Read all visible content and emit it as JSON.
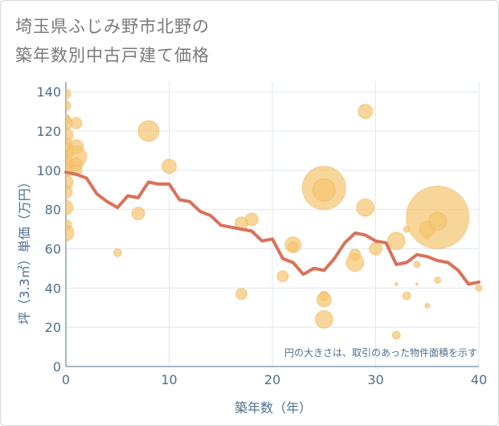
{
  "title_lines": [
    "埼玉県ふじみ野市北野の",
    "築年数別中古戸建て価格"
  ],
  "colors": {
    "line": "#d9725a",
    "bubble": "#f5c36e",
    "grid": "#dfe7f0",
    "axis_text": "#4f6f8f",
    "title": "#7a7a7a"
  },
  "chart_data": {
    "type": "scatter",
    "xlabel": "築年数（年）",
    "ylabel": "坪（3.3㎡）単価（万円）",
    "xlim": [
      0,
      40
    ],
    "ylim": [
      0,
      145
    ],
    "x_ticks": [
      0,
      10,
      20,
      30,
      40
    ],
    "y_ticks": [
      0,
      20,
      40,
      60,
      80,
      100,
      120,
      140
    ],
    "grid": true,
    "note": "円の大きさは、取引のあった物件面積を示す",
    "series": [
      {
        "kind": "bubbles",
        "points": [
          {
            "x": 0,
            "y": 139,
            "s": 6
          },
          {
            "x": 0,
            "y": 133,
            "s": 6
          },
          {
            "x": 0,
            "y": 126,
            "s": 6
          },
          {
            "x": 0,
            "y": 124,
            "s": 8
          },
          {
            "x": 0,
            "y": 118,
            "s": 9
          },
          {
            "x": 0,
            "y": 113,
            "s": 8
          },
          {
            "x": 0,
            "y": 110,
            "s": 10
          },
          {
            "x": 0,
            "y": 104,
            "s": 9
          },
          {
            "x": 0,
            "y": 100,
            "s": 8
          },
          {
            "x": 0,
            "y": 94,
            "s": 9
          },
          {
            "x": 0,
            "y": 89,
            "s": 8
          },
          {
            "x": 0,
            "y": 81,
            "s": 9
          },
          {
            "x": 0,
            "y": 72,
            "s": 7
          },
          {
            "x": 0,
            "y": 68,
            "s": 10
          },
          {
            "x": 1,
            "y": 124,
            "s": 7
          },
          {
            "x": 1,
            "y": 112,
            "s": 9
          },
          {
            "x": 1,
            "y": 107,
            "s": 13
          },
          {
            "x": 1,
            "y": 103,
            "s": 8
          },
          {
            "x": 1,
            "y": 100,
            "s": 7
          },
          {
            "x": 5,
            "y": 58,
            "s": 5
          },
          {
            "x": 7,
            "y": 78,
            "s": 8
          },
          {
            "x": 8,
            "y": 120,
            "s": 13
          },
          {
            "x": 10,
            "y": 102,
            "s": 9
          },
          {
            "x": 17,
            "y": 73,
            "s": 8
          },
          {
            "x": 17,
            "y": 37,
            "s": 7
          },
          {
            "x": 18,
            "y": 75,
            "s": 8
          },
          {
            "x": 21,
            "y": 46,
            "s": 7
          },
          {
            "x": 22,
            "y": 62,
            "s": 10
          },
          {
            "x": 22,
            "y": 61,
            "s": 6
          },
          {
            "x": 25,
            "y": 91,
            "s": 27
          },
          {
            "x": 25,
            "y": 90,
            "s": 14
          },
          {
            "x": 25,
            "y": 36,
            "s": 6
          },
          {
            "x": 25,
            "y": 34,
            "s": 9
          },
          {
            "x": 25,
            "y": 24,
            "s": 11
          },
          {
            "x": 28,
            "y": 57,
            "s": 7
          },
          {
            "x": 28,
            "y": 53,
            "s": 11
          },
          {
            "x": 29,
            "y": 130,
            "s": 9
          },
          {
            "x": 29,
            "y": 81,
            "s": 11
          },
          {
            "x": 30,
            "y": 60,
            "s": 8
          },
          {
            "x": 32,
            "y": 64,
            "s": 11
          },
          {
            "x": 32,
            "y": 42,
            "s": 2
          },
          {
            "x": 32,
            "y": 16,
            "s": 5
          },
          {
            "x": 33,
            "y": 70,
            "s": 4
          },
          {
            "x": 33,
            "y": 36,
            "s": 5
          },
          {
            "x": 34,
            "y": 52,
            "s": 4
          },
          {
            "x": 34,
            "y": 42,
            "s": 1.5
          },
          {
            "x": 35,
            "y": 70,
            "s": 10
          },
          {
            "x": 35,
            "y": 66,
            "s": 3
          },
          {
            "x": 35,
            "y": 31,
            "s": 3
          },
          {
            "x": 36,
            "y": 76,
            "s": 39
          },
          {
            "x": 36,
            "y": 74,
            "s": 11
          },
          {
            "x": 36,
            "y": 44,
            "s": 4
          },
          {
            "x": 40,
            "y": 40,
            "s": 4
          }
        ]
      },
      {
        "kind": "line",
        "points": [
          {
            "x": 0,
            "y": 99
          },
          {
            "x": 1,
            "y": 98
          },
          {
            "x": 2,
            "y": 96
          },
          {
            "x": 3,
            "y": 88
          },
          {
            "x": 4,
            "y": 84
          },
          {
            "x": 5,
            "y": 81
          },
          {
            "x": 6,
            "y": 87
          },
          {
            "x": 7,
            "y": 86
          },
          {
            "x": 8,
            "y": 94
          },
          {
            "x": 9,
            "y": 93
          },
          {
            "x": 10,
            "y": 93
          },
          {
            "x": 11,
            "y": 85
          },
          {
            "x": 12,
            "y": 84
          },
          {
            "x": 13,
            "y": 79
          },
          {
            "x": 14,
            "y": 77
          },
          {
            "x": 15,
            "y": 72
          },
          {
            "x": 16,
            "y": 71
          },
          {
            "x": 17,
            "y": 70
          },
          {
            "x": 18,
            "y": 69
          },
          {
            "x": 19,
            "y": 64
          },
          {
            "x": 20,
            "y": 65
          },
          {
            "x": 21,
            "y": 55
          },
          {
            "x": 22,
            "y": 53
          },
          {
            "x": 23,
            "y": 47
          },
          {
            "x": 24,
            "y": 50
          },
          {
            "x": 25,
            "y": 49
          },
          {
            "x": 26,
            "y": 55
          },
          {
            "x": 27,
            "y": 63
          },
          {
            "x": 28,
            "y": 68
          },
          {
            "x": 29,
            "y": 67
          },
          {
            "x": 30,
            "y": 64
          },
          {
            "x": 31,
            "y": 63
          },
          {
            "x": 32,
            "y": 52
          },
          {
            "x": 33,
            "y": 53
          },
          {
            "x": 34,
            "y": 57
          },
          {
            "x": 35,
            "y": 56
          },
          {
            "x": 36,
            "y": 54
          },
          {
            "x": 37,
            "y": 53
          },
          {
            "x": 38,
            "y": 49
          },
          {
            "x": 39,
            "y": 42
          },
          {
            "x": 40,
            "y": 43
          }
        ]
      }
    ]
  }
}
